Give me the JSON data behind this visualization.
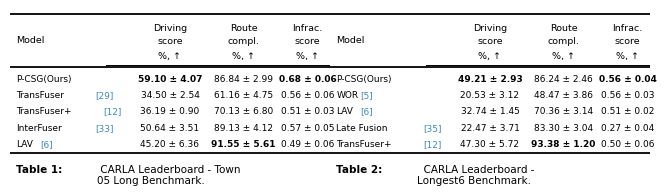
{
  "table1": {
    "caption_bold": "Table 1:",
    "caption_rest": " CARLA Leaderboard - Town\n05 Long Benchmark.",
    "rows": [
      {
        "model": "P-CSG(Ours)",
        "ref": null,
        "driving": "59.10",
        "driving_err": "4.07",
        "bold_d": true,
        "route": "86.84",
        "route_err": "2.99",
        "bold_r": false,
        "infrac": "0.68",
        "infrac_err": "0.06",
        "bold_i": true
      },
      {
        "model": "TransFuser",
        "ref": "29",
        "driving": "34.50",
        "driving_err": "2.54",
        "bold_d": false,
        "route": "61.16",
        "route_err": "4.75",
        "bold_r": false,
        "infrac": "0.56",
        "infrac_err": "0.06",
        "bold_i": false
      },
      {
        "model": "TransFuser+",
        "ref": "12",
        "driving": "36.19",
        "driving_err": "0.90",
        "bold_d": false,
        "route": "70.13",
        "route_err": "6.80",
        "bold_r": false,
        "infrac": "0.51",
        "infrac_err": "0.03",
        "bold_i": false
      },
      {
        "model": "InterFuser",
        "ref": "33",
        "driving": "50.64",
        "driving_err": "3.51",
        "bold_d": false,
        "route": "89.13",
        "route_err": "4.12",
        "bold_r": false,
        "infrac": "0.57",
        "infrac_err": "0.05",
        "bold_i": false
      },
      {
        "model": "LAV",
        "ref": "6",
        "driving": "45.20",
        "driving_err": "6.36",
        "bold_d": false,
        "route": "91.55",
        "route_err": "5.61",
        "bold_r": true,
        "infrac": "0.49",
        "infrac_err": "0.06",
        "bold_i": false
      }
    ]
  },
  "table2": {
    "caption_bold": "Table 2:",
    "caption_rest": "  CARLA Leaderboard -\nLongest6 Benchmark.",
    "rows": [
      {
        "model": "P-CSG(Ours)",
        "ref": null,
        "driving": "49.21",
        "driving_err": "2.93",
        "bold_d": true,
        "route": "86.24",
        "route_err": "2.46",
        "bold_r": false,
        "infrac": "0.56",
        "infrac_err": "0.04",
        "bold_i": true
      },
      {
        "model": "WOR",
        "ref": "5",
        "driving": "20.53",
        "driving_err": "3.12",
        "bold_d": false,
        "route": "48.47",
        "route_err": "3.86",
        "bold_r": false,
        "infrac": "0.56",
        "infrac_err": "0.03",
        "bold_i": false
      },
      {
        "model": "LAV",
        "ref": "6",
        "driving": "32.74",
        "driving_err": "1.45",
        "bold_d": false,
        "route": "70.36",
        "route_err": "3.14",
        "bold_r": false,
        "infrac": "0.51",
        "infrac_err": "0.02",
        "bold_i": false
      },
      {
        "model": "Late Fusion",
        "ref": "35",
        "driving": "22.47",
        "driving_err": "3.71",
        "bold_d": false,
        "route": "83.30",
        "route_err": "3.04",
        "bold_r": false,
        "infrac": "0.27",
        "infrac_err": "0.04",
        "bold_i": false
      },
      {
        "model": "TransFuser+",
        "ref": "12",
        "driving": "47.30",
        "driving_err": "5.72",
        "bold_d": false,
        "route": "93.38",
        "route_err": "1.20",
        "bold_r": true,
        "infrac": "0.50",
        "infrac_err": "0.06",
        "bold_i": false
      }
    ]
  },
  "bg_color": "#ffffff",
  "text_color": "#000000",
  "ref_color": "#3a8abf",
  "fs_header": 6.8,
  "fs_body": 6.5,
  "fs_caption": 7.5,
  "fs_caption_bold": 7.5
}
